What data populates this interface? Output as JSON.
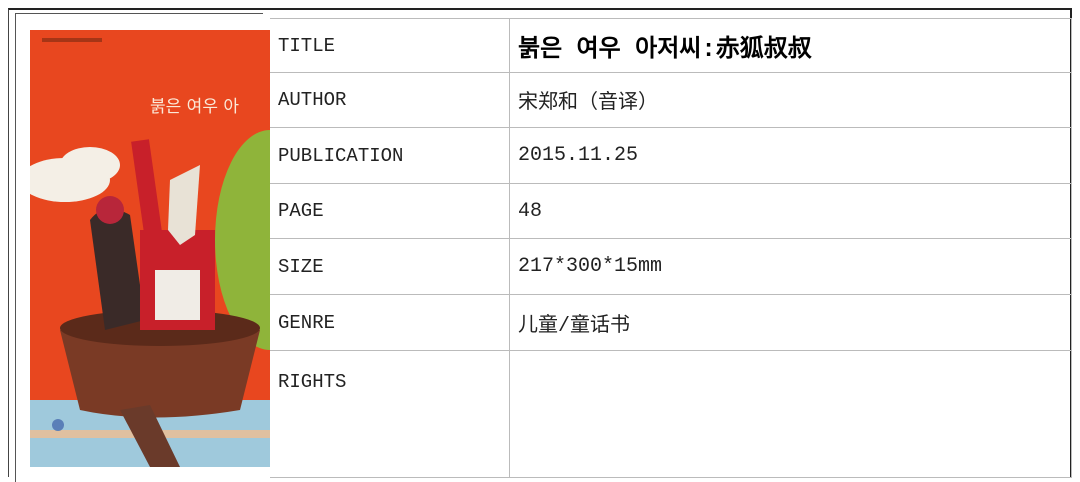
{
  "book": {
    "cover": {
      "text": "붉은 여우 아"
    },
    "rows": [
      {
        "label": "TITLE",
        "value": "붉은 여우 아저씨:赤狐叔叔"
      },
      {
        "label": "AUTHOR",
        "value": "宋郑和（音译）"
      },
      {
        "label": "PUBLICATION",
        "value": "2015.11.25"
      },
      {
        "label": "PAGE",
        "value": "48"
      },
      {
        "label": "SIZE",
        "value": "217*300*15mm"
      },
      {
        "label": "GENRE",
        "value": "儿童/童话书"
      },
      {
        "label": "RIGHTS"
      }
    ]
  }
}
